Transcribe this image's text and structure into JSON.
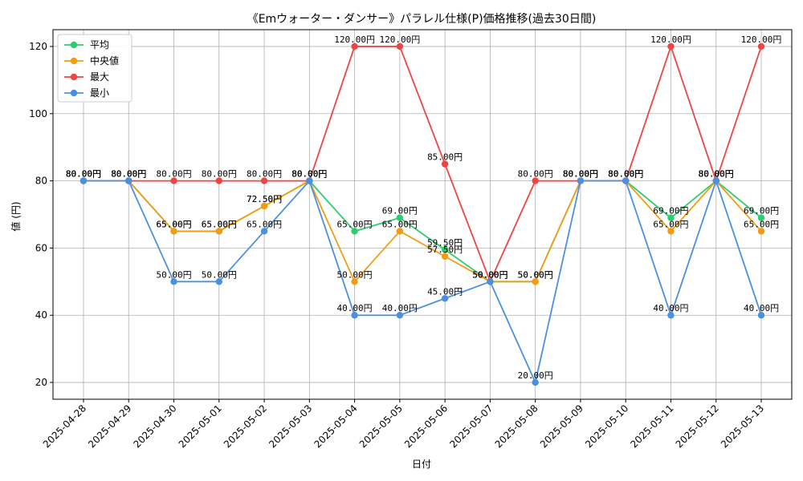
{
  "chart_data": {
    "type": "line",
    "title": "《Emウォーター・ダンサー》パラレル仕様(P)価格推移(過去30日間)",
    "xlabel": "日付",
    "ylabel": "値 (円)",
    "categories": [
      "2025-04-28",
      "2025-04-29",
      "2025-04-30",
      "2025-05-01",
      "2025-05-02",
      "2025-05-03",
      "2025-05-04",
      "2025-05-05",
      "2025-05-06",
      "2025-05-07",
      "2025-05-08",
      "2025-05-09",
      "2025-05-10",
      "2025-05-11",
      "2025-05-12",
      "2025-05-13"
    ],
    "ylim": [
      15,
      125
    ],
    "yticks": [
      20,
      40,
      60,
      80,
      100,
      120
    ],
    "grid": true,
    "legend_position": "top-left",
    "value_suffix": "円",
    "series": [
      {
        "name": "平均",
        "color": "#2ecc71",
        "values": [
          80,
          80,
          65,
          65,
          72.5,
          80,
          65,
          69,
          59.5,
          50,
          50,
          80,
          80,
          69,
          80,
          69
        ]
      },
      {
        "name": "中央値",
        "color": "#f39c12",
        "values": [
          80,
          80,
          65,
          65,
          72.5,
          80,
          50,
          65,
          57.5,
          50,
          50,
          80,
          80,
          65,
          80,
          65
        ]
      },
      {
        "name": "最大",
        "color": "#ef4444",
        "values": [
          80,
          80,
          80,
          80,
          80,
          80,
          120,
          120,
          85,
          50,
          80,
          80,
          80,
          120,
          80,
          120
        ]
      },
      {
        "name": "最小",
        "color": "#4a90e2",
        "values": [
          80,
          80,
          50,
          50,
          65,
          80,
          40,
          40,
          45,
          50,
          20,
          80,
          80,
          40,
          80,
          40
        ]
      }
    ]
  }
}
